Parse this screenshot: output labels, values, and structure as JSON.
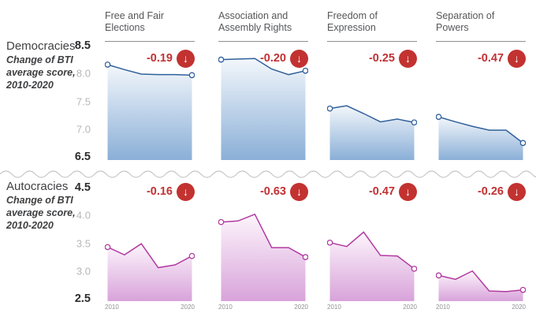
{
  "figure_caption": "Change of BTI average score, 2010-2020",
  "x_axis": [
    "2010",
    "2020"
  ],
  "icons": {
    "arrow_down": "↓"
  },
  "colors": {
    "badge_red": "#c23230",
    "change_text_red": "#c13134",
    "democracy_line_blue": "#30609b",
    "democracy_fill_top": "#f3f7fb",
    "democracy_fill_bottom": "#8aafd7",
    "autocracy_line_pink": "#b13aa0",
    "autocracy_fill_top": "#fdf5fc",
    "autocracy_fill_bottom": "#d8a3da",
    "header_gray": "#56575a",
    "axis_gray": "#b5b7ba"
  },
  "sections": [
    {
      "label": "Democracies",
      "caption": "Change of BTI average score, 2010-2020",
      "ylim": [
        6.5,
        8.5
      ],
      "yticks": [
        "8.5",
        "8.0",
        "7.5",
        "7.0",
        "6.5"
      ],
      "line_color": "#30609b",
      "fill_top": "#f3f7fb",
      "fill_bottom": "#8aafd7"
    },
    {
      "label": "Autocracies",
      "caption": "Change of BTI average score, 2010-2020",
      "ylim": [
        2.5,
        4.5
      ],
      "yticks": [
        "4.5",
        "4.0",
        "3.5",
        "3.0",
        "2.5"
      ],
      "line_color": "#b13aa0",
      "fill_top": "#fdf5fc",
      "fill_bottom": "#d8a3da"
    }
  ],
  "chart_data": [
    {
      "type": "area",
      "group": "Democracies",
      "title": "Free and Fair Elections",
      "x": [
        2010,
        2012,
        2014,
        2016,
        2018,
        2020
      ],
      "values": [
        8.16,
        8.07,
        7.99,
        7.98,
        7.98,
        7.97
      ],
      "change": -0.19,
      "change_label": "-0.19",
      "ylim": [
        6.5,
        8.5
      ],
      "section": 0
    },
    {
      "type": "area",
      "group": "Democracies",
      "title": "Association and Assembly Rights",
      "x": [
        2010,
        2012,
        2014,
        2016,
        2018,
        2020
      ],
      "values": [
        8.25,
        8.26,
        8.27,
        8.08,
        7.98,
        8.05
      ],
      "change": -0.2,
      "change_label": "-0.20",
      "ylim": [
        6.5,
        8.5
      ],
      "section": 0
    },
    {
      "type": "area",
      "group": "Democracies",
      "title": "Freedom of Expression",
      "x": [
        2010,
        2012,
        2014,
        2016,
        2018,
        2020
      ],
      "values": [
        7.37,
        7.42,
        7.28,
        7.13,
        7.18,
        7.12
      ],
      "change": -0.25,
      "change_label": "-0.25",
      "ylim": [
        6.5,
        8.5
      ],
      "section": 0
    },
    {
      "type": "area",
      "group": "Democracies",
      "title": "Separation of Powers",
      "x": [
        2010,
        2012,
        2014,
        2016,
        2018,
        2020
      ],
      "values": [
        7.22,
        7.13,
        7.05,
        6.98,
        6.98,
        6.75
      ],
      "change": -0.47,
      "change_label": "-0.47",
      "ylim": [
        6.5,
        8.5
      ],
      "section": 0
    },
    {
      "type": "area",
      "group": "Autocracies",
      "title": "Free and Fair Elections",
      "x": [
        2010,
        2012,
        2014,
        2016,
        2018,
        2020
      ],
      "values": [
        3.43,
        3.29,
        3.49,
        3.06,
        3.11,
        3.27
      ],
      "change": -0.16,
      "change_label": "-0.16",
      "ylim": [
        2.5,
        4.5
      ],
      "section": 1
    },
    {
      "type": "area",
      "group": "Autocracies",
      "title": "Association and Assembly Rights",
      "x": [
        2010,
        2012,
        2014,
        2016,
        2018,
        2020
      ],
      "values": [
        3.88,
        3.9,
        4.02,
        3.42,
        3.42,
        3.25
      ],
      "change": -0.63,
      "change_label": "-0.63",
      "ylim": [
        2.5,
        4.5
      ],
      "section": 1
    },
    {
      "type": "area",
      "group": "Autocracies",
      "title": "Freedom of Expression",
      "x": [
        2010,
        2012,
        2014,
        2016,
        2018,
        2020
      ],
      "values": [
        3.51,
        3.44,
        3.7,
        3.28,
        3.27,
        3.04
      ],
      "change": -0.47,
      "change_label": "-0.47",
      "ylim": [
        2.5,
        4.5
      ],
      "section": 1
    },
    {
      "type": "area",
      "group": "Autocracies",
      "title": "Separation of Powers",
      "x": [
        2010,
        2012,
        2014,
        2016,
        2018,
        2020
      ],
      "values": [
        2.92,
        2.85,
        3.0,
        2.64,
        2.63,
        2.66
      ],
      "change": -0.26,
      "change_label": "-0.26",
      "ylim": [
        2.5,
        4.5
      ],
      "section": 1
    }
  ]
}
